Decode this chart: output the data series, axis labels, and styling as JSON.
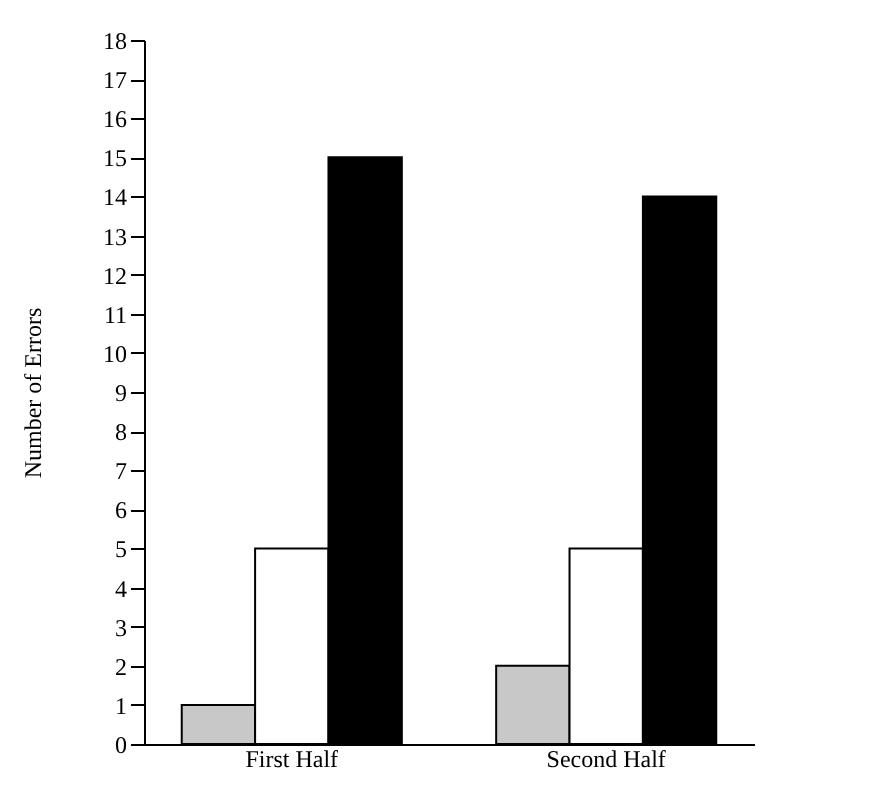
{
  "chart_data": {
    "type": "bar",
    "ylabel": "Number of Errors",
    "categories": [
      "First Half",
      "Second Half"
    ],
    "series": [
      {
        "color": "#c8c8c8",
        "values": [
          1,
          2
        ]
      },
      {
        "color": "#ffffff",
        "values": [
          5,
          5
        ]
      },
      {
        "color": "#000000",
        "values": [
          15,
          14
        ]
      }
    ],
    "ylim": [
      0,
      18
    ],
    "yticks": [
      0,
      1,
      2,
      3,
      4,
      5,
      6,
      7,
      8,
      9,
      10,
      11,
      12,
      13,
      14,
      15,
      16,
      17,
      18
    ],
    "grid": false,
    "legend": false
  }
}
